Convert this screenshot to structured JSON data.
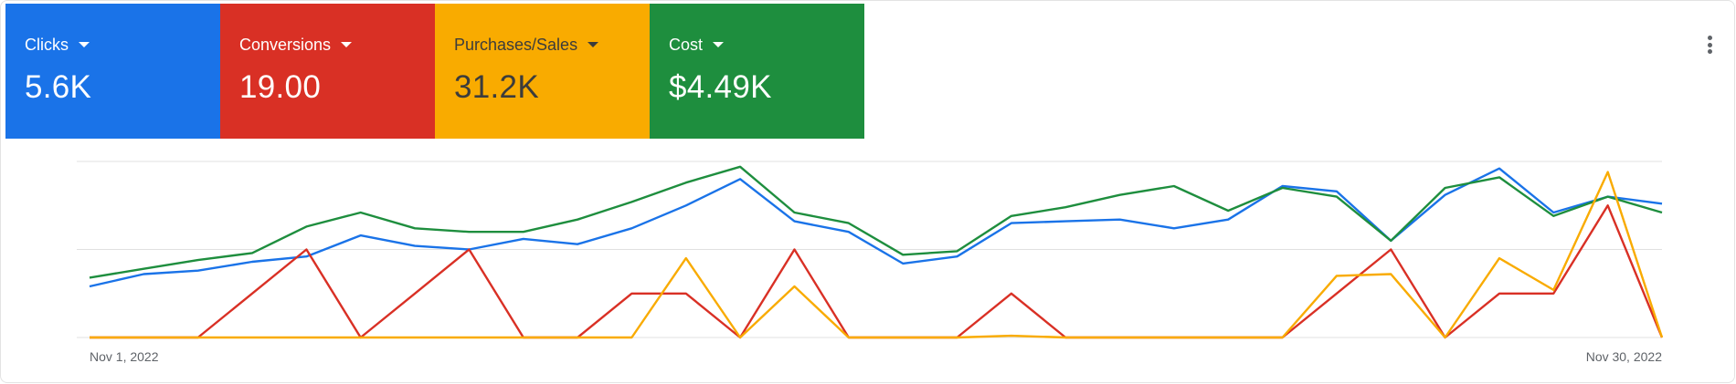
{
  "colors": {
    "clicks": "#1a73e8",
    "conversions": "#d93025",
    "purchases": "#f9ab00",
    "cost": "#1e8e3e",
    "gridline": "#e0e0e0",
    "card_border": "#e3e3e3"
  },
  "tiles": [
    {
      "label": "Clicks",
      "value": "5.6K",
      "color": "#1a73e8"
    },
    {
      "label": "Conversions",
      "value": "19.00",
      "color": "#d93025"
    },
    {
      "label": "Purchases/Sales",
      "value": "31.2K",
      "color": "#f9ab00"
    },
    {
      "label": "Cost",
      "value": "$4.49K",
      "color": "#1e8e3e"
    }
  ],
  "menu": {
    "icon": "more-vert-icon"
  },
  "chart_data": {
    "type": "line",
    "x_start_label": "Nov 1, 2022",
    "x_end_label": "Nov 30, 2022",
    "y_axis_labels_shown": false,
    "grid": true,
    "normalized": true,
    "ylim": [
      0,
      1
    ],
    "series": [
      {
        "name": "Clicks",
        "color": "#1a73e8",
        "values": [
          0.29,
          0.36,
          0.38,
          0.43,
          0.46,
          0.58,
          0.52,
          0.5,
          0.56,
          0.53,
          0.62,
          0.75,
          0.9,
          0.66,
          0.6,
          0.42,
          0.46,
          0.65,
          0.66,
          0.67,
          0.62,
          0.67,
          0.86,
          0.83,
          0.55,
          0.81,
          0.96,
          0.71,
          0.8,
          0.76
        ]
      },
      {
        "name": "Conversions",
        "color": "#d93025",
        "values": [
          0,
          0,
          0,
          0.25,
          0.5,
          0,
          0.25,
          0.5,
          0,
          0,
          0.25,
          0.25,
          0,
          0.5,
          0,
          0,
          0,
          0.25,
          0,
          0,
          0,
          0,
          0,
          0.25,
          0.5,
          0,
          0.25,
          0.25,
          0.75,
          0
        ]
      },
      {
        "name": "Purchases/Sales",
        "color": "#f9ab00",
        "values": [
          0,
          0,
          0,
          0,
          0,
          0,
          0,
          0,
          0,
          0,
          0,
          0.45,
          0,
          0.29,
          0,
          0,
          0,
          0.01,
          0,
          0,
          0,
          0,
          0,
          0.35,
          0.36,
          0,
          0.45,
          0.27,
          0.94,
          0
        ]
      },
      {
        "name": "Cost",
        "color": "#1e8e3e",
        "values": [
          0.34,
          0.39,
          0.44,
          0.48,
          0.63,
          0.71,
          0.62,
          0.6,
          0.6,
          0.67,
          0.77,
          0.88,
          0.97,
          0.71,
          0.65,
          0.47,
          0.49,
          0.69,
          0.74,
          0.81,
          0.86,
          0.72,
          0.85,
          0.8,
          0.55,
          0.85,
          0.91,
          0.69,
          0.8,
          0.71
        ]
      }
    ]
  }
}
